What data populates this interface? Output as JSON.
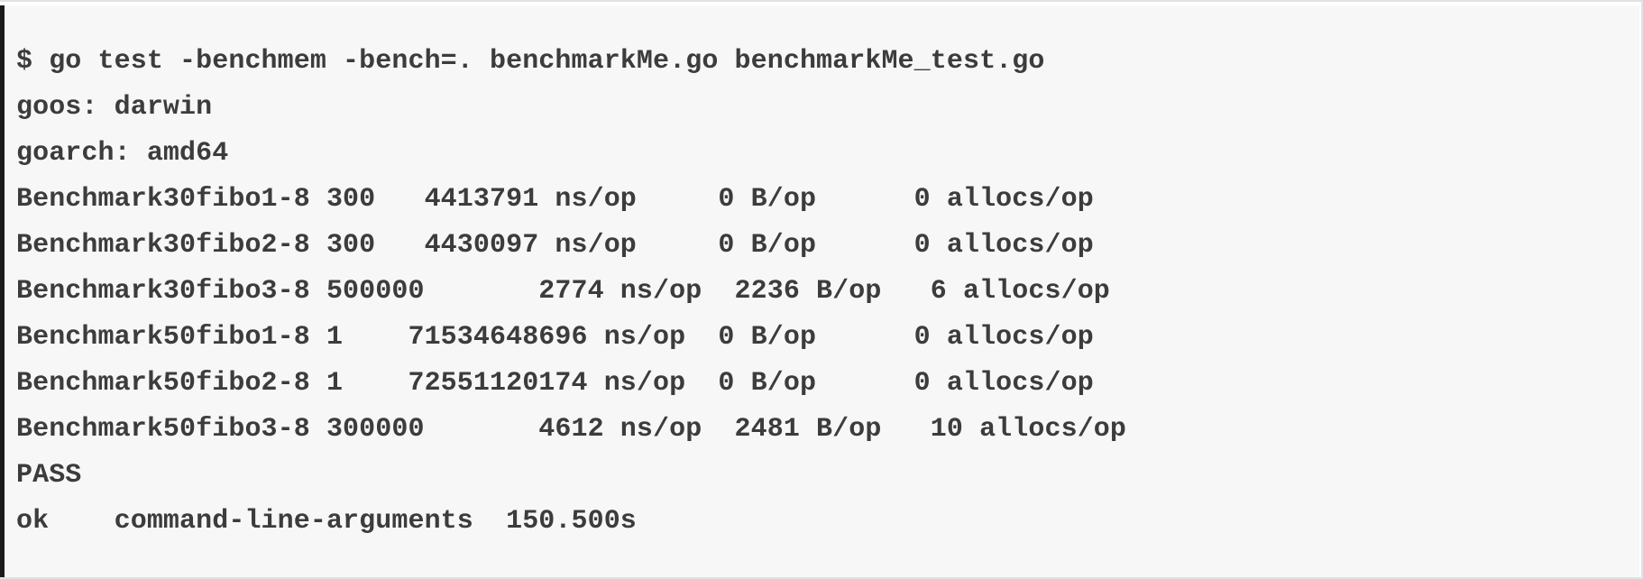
{
  "terminal": {
    "lines": [
      "$ go test -benchmem -bench=. benchmarkMe.go benchmarkMe_test.go",
      "goos: darwin",
      "goarch: amd64",
      "Benchmark30fibo1-8 300   4413791 ns/op     0 B/op      0 allocs/op",
      "Benchmark30fibo2-8 300   4430097 ns/op     0 B/op      0 allocs/op",
      "Benchmark30fibo3-8 500000       2774 ns/op  2236 B/op   6 allocs/op",
      "Benchmark50fibo1-8 1    71534648696 ns/op  0 B/op      0 allocs/op",
      "Benchmark50fibo2-8 1    72551120174 ns/op  0 B/op      0 allocs/op",
      "Benchmark50fibo3-8 300000       4612 ns/op  2481 B/op   10 allocs/op",
      "PASS",
      "ok    command-line-arguments  150.500s"
    ]
  }
}
